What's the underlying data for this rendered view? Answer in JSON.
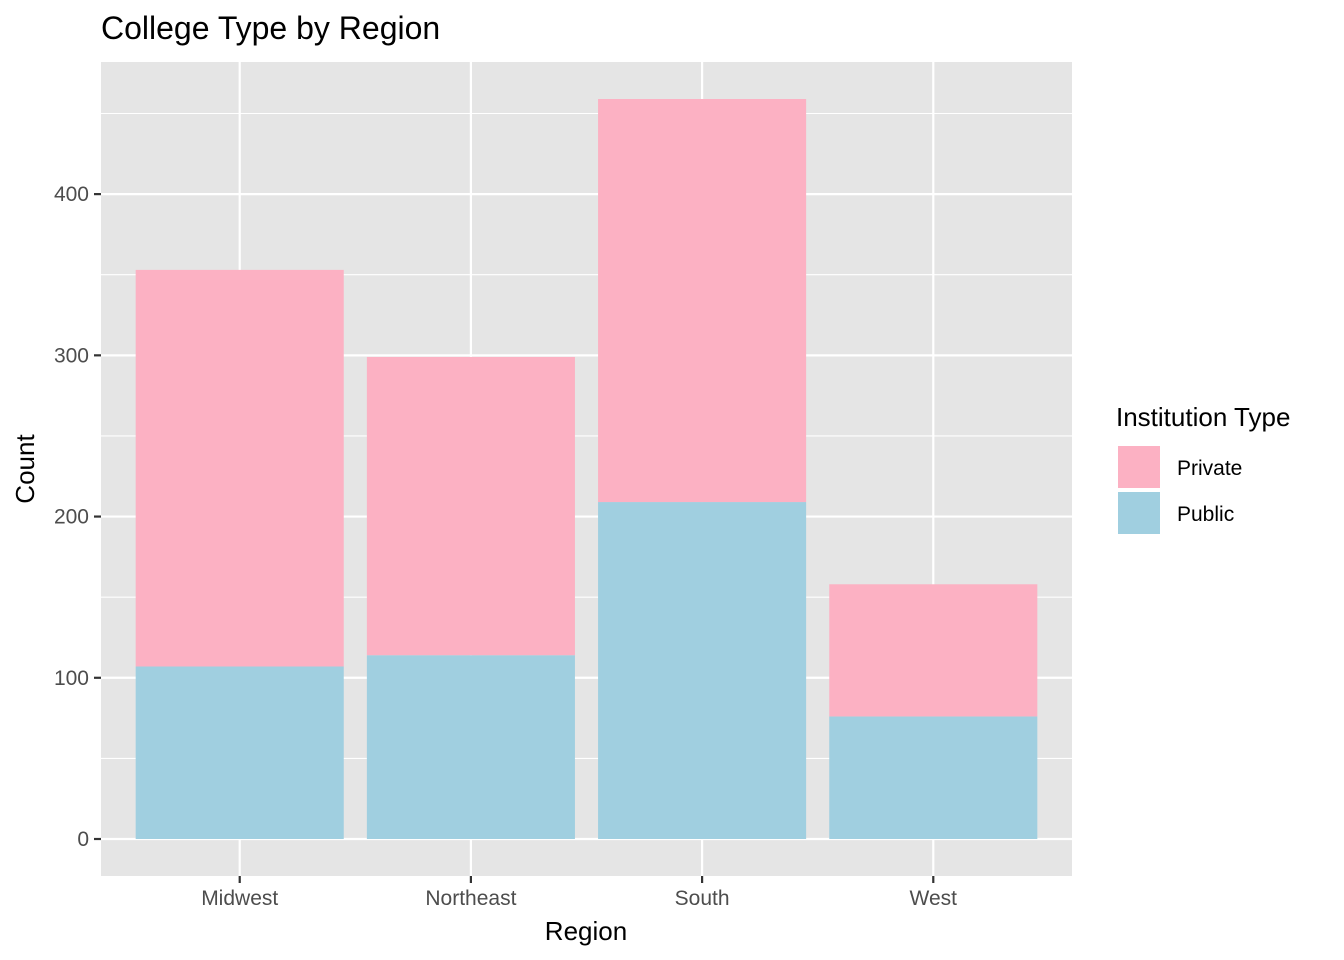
{
  "chart_data": {
    "type": "bar",
    "stacked": true,
    "title": "College Type by Region",
    "xlabel": "Region",
    "ylabel": "Count",
    "categories": [
      "Midwest",
      "Northeast",
      "South",
      "West"
    ],
    "series": [
      {
        "name": "Public",
        "values": [
          107,
          114,
          209,
          76
        ],
        "color": "#a0cfe0"
      },
      {
        "name": "Private",
        "values": [
          246,
          185,
          250,
          82
        ],
        "color": "#fcb1c3"
      }
    ],
    "ylim": [
      -22.95,
      481.95
    ],
    "yticks": [
      0,
      100,
      200,
      300,
      400
    ],
    "grid": true,
    "legend": {
      "title": "Institution Type",
      "position": "right",
      "items": [
        "Private",
        "Public"
      ]
    },
    "colors": {
      "panel_background": "#e5e5e5",
      "grid": "#ffffff",
      "axis_text": "#4d4d4d",
      "tick": "#333333"
    }
  }
}
